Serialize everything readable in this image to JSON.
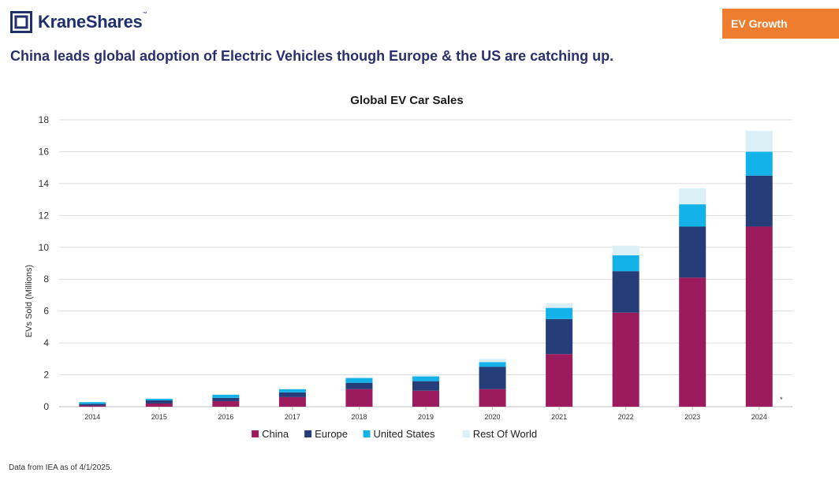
{
  "brand": {
    "name": "KraneShares",
    "trademark": "™",
    "logo_icon": "kraneshares-logo-icon"
  },
  "tag": "EV Growth",
  "headline": "China leads global adoption of Electric Vehicles though Europe & the US are catching up.",
  "footnote": "Data from IEA as of 4/1/2025.",
  "asterisk": "*",
  "colors": {
    "China": "#9c1b5f",
    "Europe": "#253d78",
    "United States": "#13b2e8",
    "Rest Of World": "#dbeff6",
    "accent": "#ef7d2f",
    "brand": "#1f2f6b"
  },
  "chart_data": {
    "type": "bar",
    "stacked": true,
    "title": "Global EV Car Sales",
    "xlabel": "",
    "ylabel": "EVs Sold (Millions)",
    "ylim": [
      0,
      18
    ],
    "yticks": [
      0,
      2,
      4,
      6,
      8,
      10,
      12,
      14,
      16,
      18
    ],
    "grid": true,
    "legend_position": "bottom",
    "categories": [
      "2014",
      "2015",
      "2016",
      "2017",
      "2018",
      "2019",
      "2020",
      "2021",
      "2022",
      "2023",
      "2024"
    ],
    "series": [
      {
        "name": "China",
        "values": [
          0.07,
          0.2,
          0.35,
          0.6,
          1.1,
          1.0,
          1.1,
          3.3,
          5.9,
          8.1,
          11.3
        ]
      },
      {
        "name": "Europe",
        "values": [
          0.1,
          0.2,
          0.2,
          0.3,
          0.4,
          0.6,
          1.4,
          2.2,
          2.6,
          3.2,
          3.2
        ]
      },
      {
        "name": "United States",
        "values": [
          0.12,
          0.1,
          0.2,
          0.2,
          0.3,
          0.3,
          0.3,
          0.7,
          1.0,
          1.4,
          1.5
        ]
      },
      {
        "name": "Rest Of World",
        "values": [
          0.01,
          0.03,
          0.05,
          0.05,
          0.05,
          0.1,
          0.2,
          0.3,
          0.6,
          1.0,
          1.3
        ]
      }
    ]
  }
}
